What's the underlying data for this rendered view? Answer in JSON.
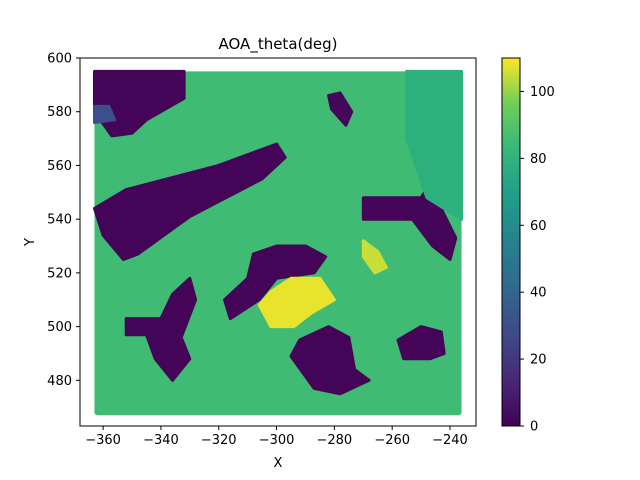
{
  "chart_data": {
    "type": "heatmap",
    "title": "AOA_theta(deg)",
    "xlabel": "X",
    "ylabel": "Y",
    "xlim": [
      -368,
      -231
    ],
    "ylim": [
      463,
      600
    ],
    "xticks": [
      -360,
      -340,
      -320,
      -300,
      -280,
      -260,
      -240
    ],
    "xtick_labels": [
      "−360",
      "−340",
      "−320",
      "−300",
      "−280",
      "−260",
      "−240"
    ],
    "yticks": [
      480,
      500,
      520,
      540,
      560,
      580,
      600
    ],
    "ytick_labels": [
      "480",
      "500",
      "520",
      "540",
      "560",
      "580",
      "600"
    ],
    "grid": false,
    "colorbar": {
      "colormap": "viridis",
      "range": [
        0,
        110
      ],
      "ticks": [
        0,
        20,
        40,
        60,
        80,
        100
      ],
      "tick_labels": [
        "0",
        "20",
        "40",
        "60",
        "80",
        "100"
      ]
    },
    "data_extent": {
      "x": [
        -363,
        -236
      ],
      "y": [
        467,
        595
      ]
    },
    "background_value": 85,
    "regions": [
      {
        "name": "top-left-block",
        "value": 1,
        "polygon": [
          [
            -363,
            595
          ],
          [
            -332,
            595
          ],
          [
            -332,
            585
          ],
          [
            -345,
            577
          ],
          [
            -350,
            572
          ],
          [
            -357,
            571
          ],
          [
            -363,
            580
          ]
        ]
      },
      {
        "name": "diagonal-band",
        "value": 1,
        "polygon": [
          [
            -363,
            544
          ],
          [
            -352,
            551
          ],
          [
            -320,
            560
          ],
          [
            -300,
            568
          ],
          [
            -297,
            563
          ],
          [
            -305,
            555
          ],
          [
            -330,
            541
          ],
          [
            -348,
            527
          ],
          [
            -353,
            525
          ],
          [
            -360,
            534
          ]
        ]
      },
      {
        "name": "top-center-spot",
        "value": 2,
        "polygon": [
          [
            -282,
            586
          ],
          [
            -278,
            587
          ],
          [
            -274,
            580
          ],
          [
            -276,
            575
          ],
          [
            -281,
            581
          ]
        ]
      },
      {
        "name": "right-wing",
        "value": 1,
        "polygon": [
          [
            -270,
            548
          ],
          [
            -250,
            548
          ],
          [
            -247,
            553
          ],
          [
            -244,
            546
          ],
          [
            -238,
            533
          ],
          [
            -240,
            525
          ],
          [
            -246,
            530
          ],
          [
            -253,
            540
          ],
          [
            -270,
            540
          ]
        ]
      },
      {
        "name": "center-cross",
        "value": 1,
        "polygon": [
          [
            -308,
            527
          ],
          [
            -300,
            530
          ],
          [
            -290,
            530
          ],
          [
            -283,
            526
          ],
          [
            -287,
            520
          ],
          [
            -300,
            518
          ],
          [
            -306,
            510
          ],
          [
            -316,
            503
          ],
          [
            -318,
            510
          ],
          [
            -310,
            518
          ]
        ]
      },
      {
        "name": "left-arm-block",
        "value": 1,
        "polygon": [
          [
            -352,
            503
          ],
          [
            -340,
            503
          ],
          [
            -336,
            512
          ],
          [
            -330,
            518
          ],
          [
            -328,
            510
          ],
          [
            -333,
            496
          ],
          [
            -330,
            488
          ],
          [
            -336,
            480
          ],
          [
            -342,
            488
          ],
          [
            -345,
            497
          ],
          [
            -352,
            497
          ]
        ]
      },
      {
        "name": "bottom-center-block",
        "value": 1,
        "polygon": [
          [
            -292,
            495
          ],
          [
            -282,
            500
          ],
          [
            -275,
            496
          ],
          [
            -273,
            484
          ],
          [
            -268,
            480
          ],
          [
            -278,
            475
          ],
          [
            -287,
            477
          ],
          [
            -295,
            489
          ]
        ]
      },
      {
        "name": "right-small-block",
        "value": 1,
        "polygon": [
          [
            -258,
            495
          ],
          [
            -250,
            500
          ],
          [
            -243,
            498
          ],
          [
            -242,
            490
          ],
          [
            -247,
            488
          ],
          [
            -256,
            488
          ]
        ]
      },
      {
        "name": "yellow-highlight",
        "value": 108,
        "polygon": [
          [
            -302,
            513
          ],
          [
            -295,
            518
          ],
          [
            -285,
            518
          ],
          [
            -280,
            510
          ],
          [
            -288,
            505
          ],
          [
            -294,
            500
          ],
          [
            -302,
            500
          ],
          [
            -306,
            508
          ]
        ]
      },
      {
        "name": "yellow-spot-right",
        "value": 105,
        "polygon": [
          [
            -270,
            532
          ],
          [
            -265,
            528
          ],
          [
            -262,
            522
          ],
          [
            -266,
            520
          ],
          [
            -270,
            526
          ]
        ]
      },
      {
        "name": "teal-right-edge",
        "value": 78,
        "polygon": [
          [
            -255,
            595
          ],
          [
            -236,
            595
          ],
          [
            -236,
            540
          ],
          [
            -248,
            548
          ],
          [
            -255,
            570
          ]
        ]
      },
      {
        "name": "dark-blue-patch-left",
        "value": 30,
        "polygon": [
          [
            -363,
            582
          ],
          [
            -358,
            582
          ],
          [
            -356,
            577
          ],
          [
            -363,
            576
          ]
        ]
      }
    ]
  }
}
